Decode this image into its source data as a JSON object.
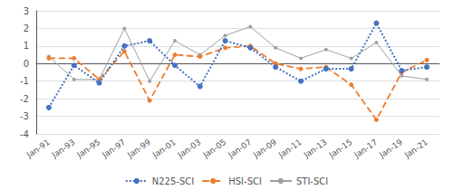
{
  "chart_data": {
    "type": "line",
    "categories": [
      "Jan-91",
      "Jan-93",
      "Jan-95",
      "Jan-97",
      "Jan-99",
      "Jan-01",
      "Jan-03",
      "Jan-05",
      "Jan-07",
      "Jan-09",
      "Jan-11",
      "Jan-13",
      "Jan-15",
      "Jan-17",
      "Jan-19",
      "Jan-21"
    ],
    "series": [
      {
        "name": "N225-SCI",
        "color": "#4472C4",
        "line_style": "dotted",
        "marker": "circle",
        "values": [
          -2.5,
          -0.1,
          -1.1,
          1.0,
          1.3,
          -0.1,
          -1.3,
          1.3,
          0.9,
          -0.2,
          -1.0,
          -0.3,
          -0.3,
          2.3,
          -0.4,
          -0.2
        ]
      },
      {
        "name": "HSI-SCI",
        "color": "#ED7D31",
        "line_style": "dashed",
        "marker": "circle",
        "values": [
          0.3,
          0.3,
          -0.9,
          0.7,
          -2.1,
          0.5,
          0.4,
          0.9,
          1.0,
          0.0,
          -0.3,
          -0.2,
          -1.2,
          -3.2,
          -0.5,
          0.2
        ]
      },
      {
        "name": "STI-SCI",
        "color": "#A0A0A0",
        "line_style": "solid",
        "marker": "circle",
        "values": [
          0.4,
          -0.9,
          -0.9,
          2.0,
          -1.0,
          1.3,
          0.5,
          1.6,
          2.1,
          0.9,
          0.3,
          0.8,
          0.3,
          1.2,
          -0.7,
          -0.9
        ]
      }
    ],
    "ylim": [
      -4,
      3
    ],
    "yticks": [
      -4,
      -3,
      -2,
      -1,
      0,
      1,
      2,
      3
    ],
    "grid": true,
    "legend": "bottom"
  }
}
